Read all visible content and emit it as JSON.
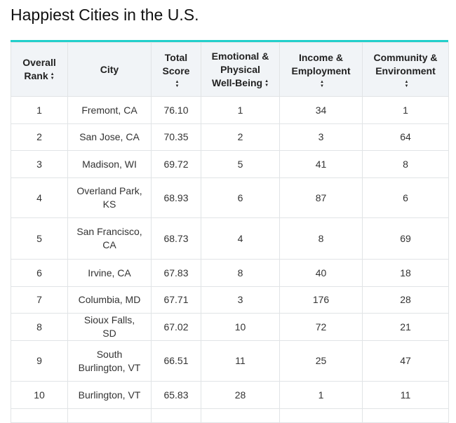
{
  "title": "Happiest Cities in the U.S.",
  "accent_color": "#22cfcb",
  "columns": [
    {
      "label": "Overall Rank",
      "sortable": true,
      "icon": "sort-icon"
    },
    {
      "label": "City",
      "sortable": false
    },
    {
      "label": "Total Score",
      "sortable": true,
      "icon": "sort-icon"
    },
    {
      "label": "Emotional & Physical Well-Being",
      "sortable": true,
      "icon": "sort-icon"
    },
    {
      "label": "Income & Employment",
      "sortable": true,
      "icon": "sort-icon"
    },
    {
      "label": "Community & Environment",
      "sortable": true,
      "icon": "sort-icon"
    }
  ],
  "rows": [
    [
      "1",
      "Fremont, CA",
      "76.10",
      "1",
      "34",
      "1"
    ],
    [
      "2",
      "San Jose, CA",
      "70.35",
      "2",
      "3",
      "64"
    ],
    [
      "3",
      "Madison, WI",
      "69.72",
      "5",
      "41",
      "8"
    ],
    [
      "4",
      "Overland Park, KS",
      "68.93",
      "6",
      "87",
      "6"
    ],
    [
      "5",
      "San Francisco, CA",
      "68.73",
      "4",
      "8",
      "69"
    ],
    [
      "6",
      "Irvine, CA",
      "67.83",
      "8",
      "40",
      "18"
    ],
    [
      "7",
      "Columbia, MD",
      "67.71",
      "3",
      "176",
      "28"
    ],
    [
      "8",
      "Sioux Falls, SD",
      "67.02",
      "10",
      "72",
      "21"
    ],
    [
      "9",
      "South Burlington, VT",
      "66.51",
      "11",
      "25",
      "47"
    ],
    [
      "10",
      "Burlington, VT",
      "65.83",
      "28",
      "1",
      "11"
    ]
  ]
}
